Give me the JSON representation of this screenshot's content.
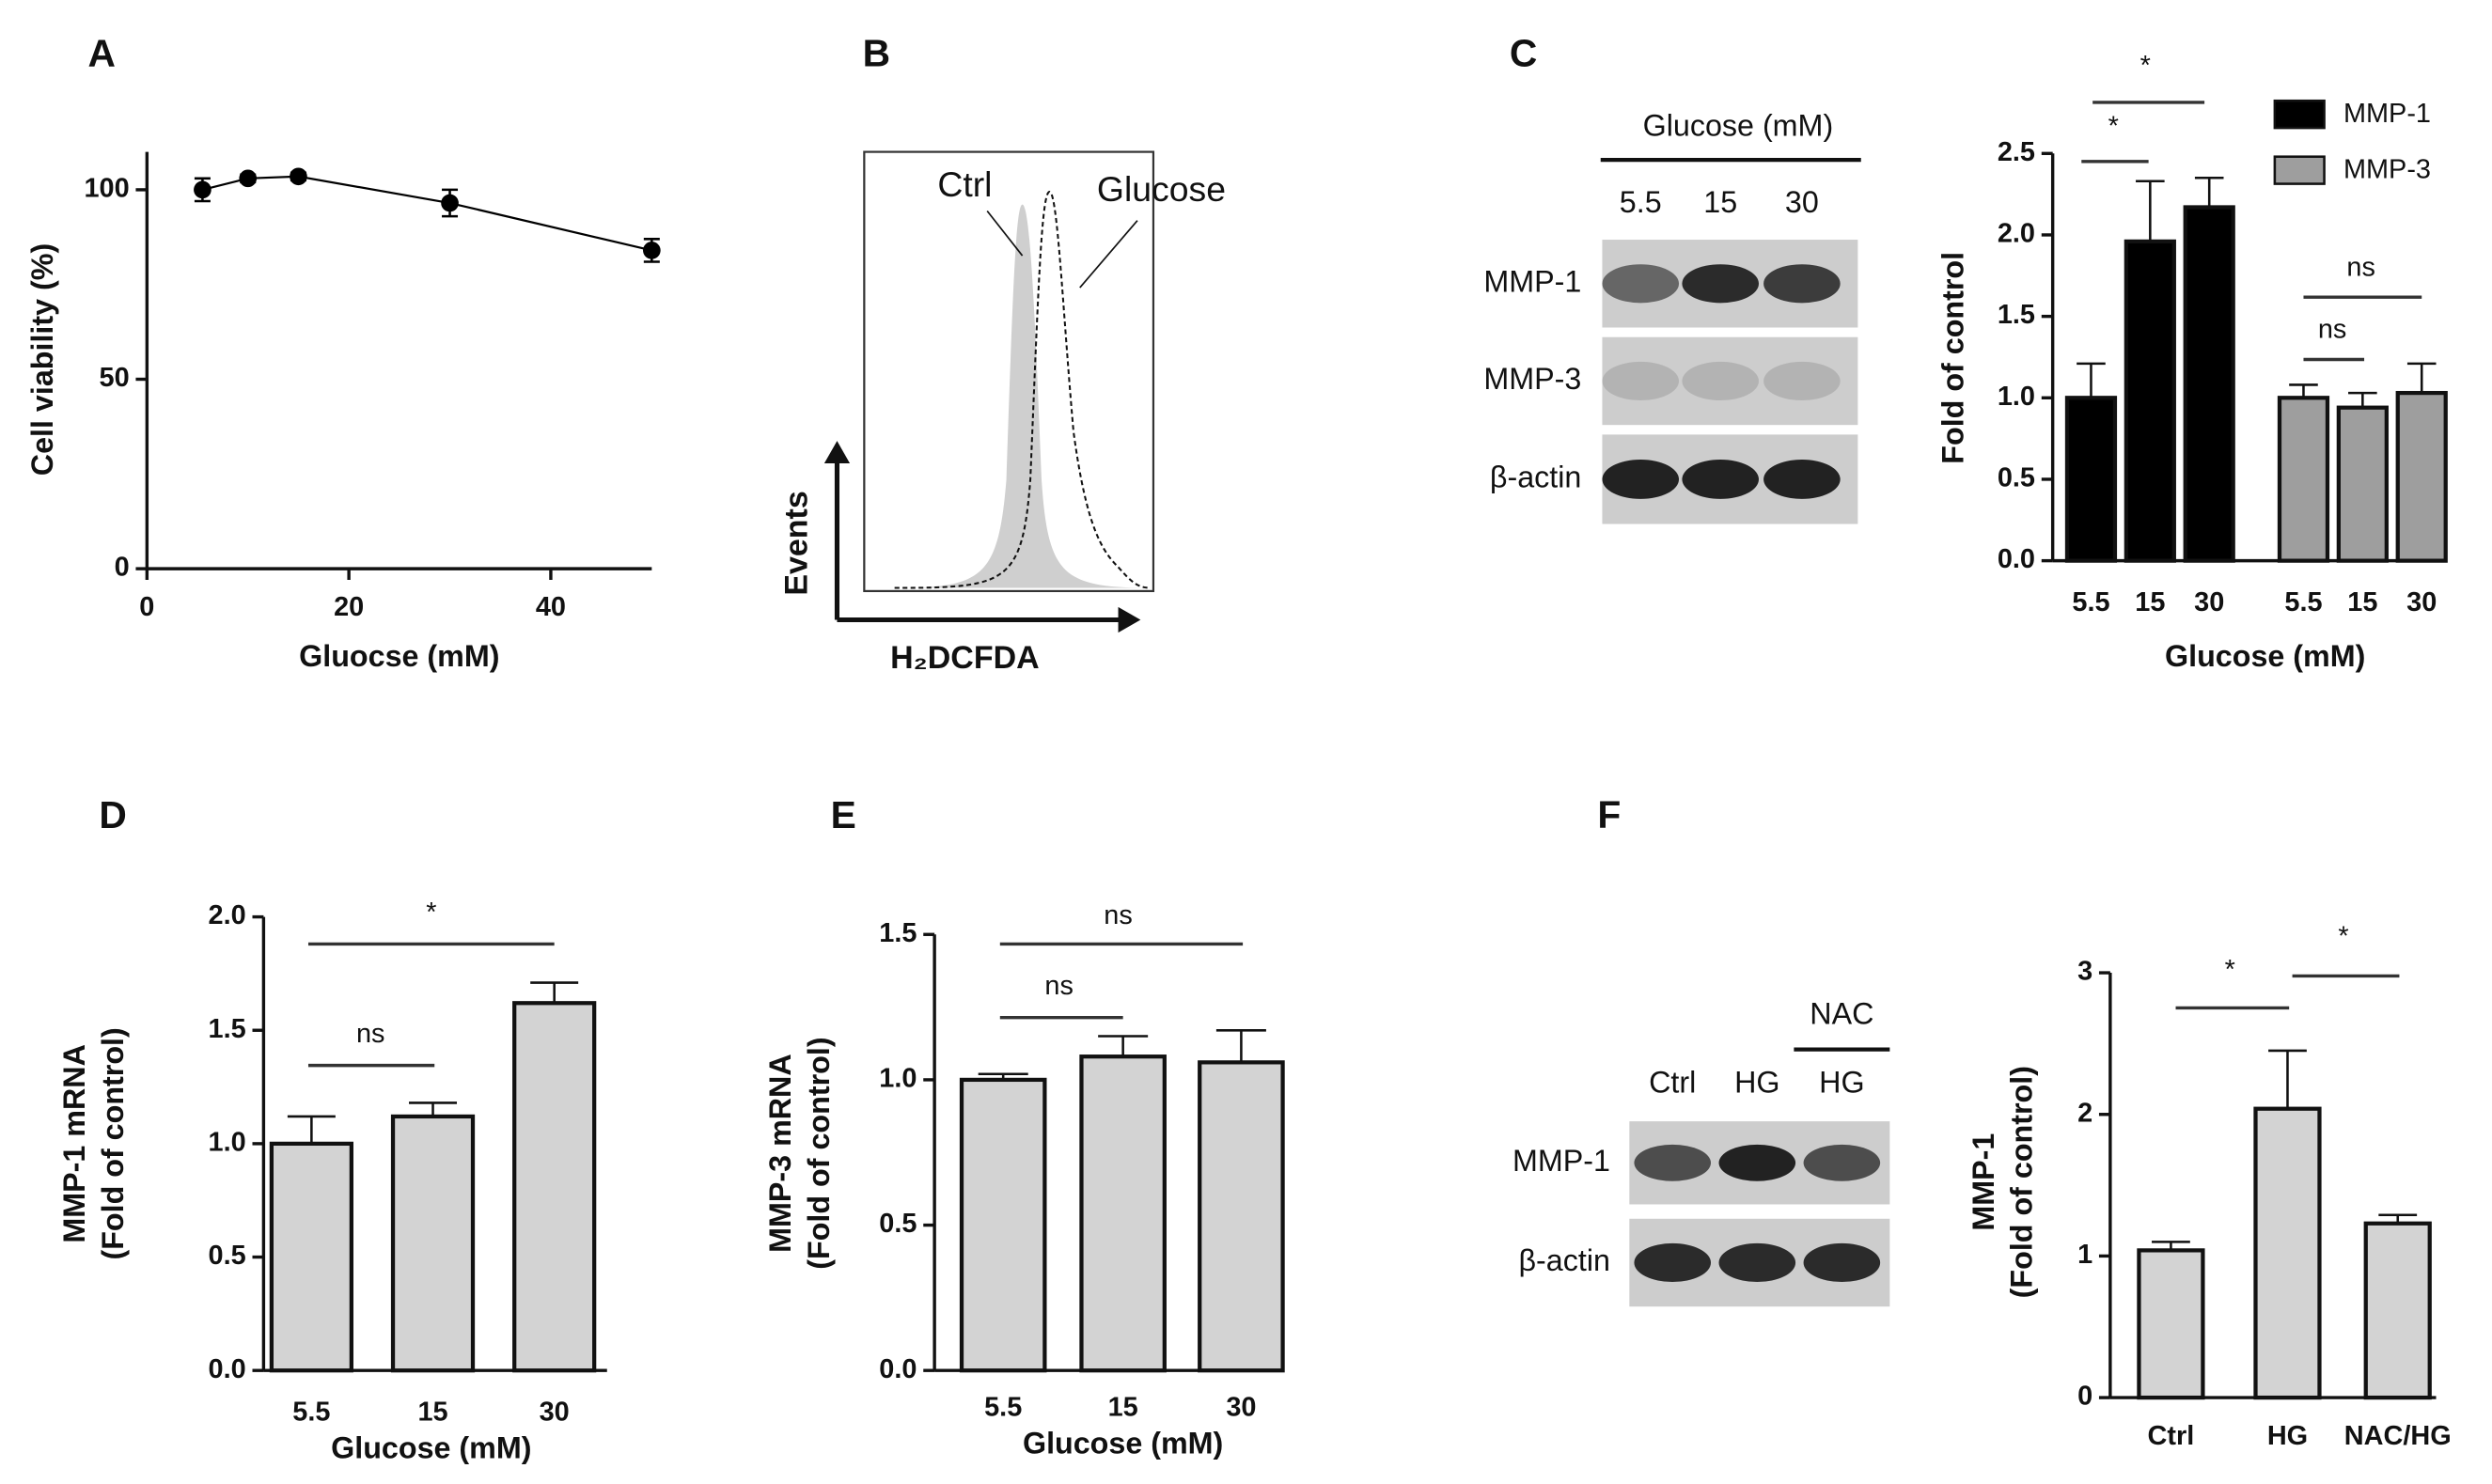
{
  "panel_labels": [
    "A",
    "B",
    "C",
    "D",
    "E",
    "F"
  ],
  "flow_panel": {
    "labels": [
      "Ctrl",
      "Glucose"
    ],
    "ylabel": "Events",
    "xlabel": "H₂DCFDA"
  },
  "blots": [
    {
      "header": "Glucose (mM)",
      "lanes": [
        "5.5",
        "15",
        "30"
      ],
      "rows": [
        "MMP-1",
        "MMP-3",
        "β-actin"
      ]
    },
    {
      "header": "NAC",
      "lanes": [
        "Ctrl",
        "HG",
        "HG"
      ],
      "rows": [
        "MMP-1",
        "β-actin"
      ]
    }
  ],
  "chart_data": [
    {
      "type": "scatter",
      "x": [
        5.5,
        10,
        15,
        30,
        50
      ],
      "values": [
        100,
        103,
        103.5,
        96.5,
        84
      ],
      "errors": [
        3,
        1,
        1,
        3.5,
        3
      ],
      "xlim": [
        0,
        50
      ],
      "ylim": [
        0,
        110
      ],
      "xticks": [
        0,
        20,
        40
      ],
      "yticks": [
        0,
        50,
        100
      ],
      "xlabel": "Gluocse (mM)",
      "ylabel": [
        "Cell viability (%)"
      ],
      "color": "#000000"
    },
    {
      "type": "bar",
      "categories": [
        "5.5",
        "15",
        "30"
      ],
      "series": [
        {
          "name": "MMP-1",
          "color": "#000000",
          "values": [
            1.0,
            1.96,
            2.17
          ],
          "errors": [
            0.21,
            0.37,
            0.18
          ]
        },
        {
          "name": "MMP-3",
          "color": "#9e9e9e",
          "values": [
            1.0,
            0.94,
            1.03
          ],
          "errors": [
            0.08,
            0.09,
            0.18
          ]
        }
      ],
      "ylim": [
        0,
        2.5
      ],
      "yticks": [
        {
          "value": 0,
          "label": "0.0"
        },
        0.5,
        {
          "value": 1,
          "label": "1.0"
        },
        1.5,
        {
          "value": 2,
          "label": "2.0"
        },
        2.5
      ],
      "xlabel": "Glucose (mM)",
      "ylabel": [
        "Fold of control"
      ],
      "annotations": [
        "*",
        "*",
        "ns",
        "ns"
      ],
      "legend": "upper right"
    },
    {
      "type": "bar",
      "categories": [
        "5.5",
        "15",
        "30"
      ],
      "values": [
        1.0,
        1.12,
        1.62
      ],
      "errors": [
        0.12,
        0.06,
        0.09
      ],
      "color": "#d3d3d3",
      "ylim": [
        0,
        2
      ],
      "yticks": [
        {
          "value": 0,
          "label": "0.0"
        },
        0.5,
        {
          "value": 1,
          "label": "1.0"
        },
        1.5,
        {
          "value": 2,
          "label": "2.0"
        }
      ],
      "xlabel": "Glucose (mM)",
      "ylabel": [
        "MMP-1 mRNA",
        "(Fold of control)"
      ],
      "annotations": [
        "ns",
        "*"
      ]
    },
    {
      "type": "bar",
      "categories": [
        "5.5",
        "15",
        "30"
      ],
      "values": [
        1.0,
        1.08,
        1.06
      ],
      "errors": [
        0.02,
        0.07,
        0.11
      ],
      "color": "#d3d3d3",
      "ylim": [
        0,
        1.5
      ],
      "yticks": [
        {
          "value": 0,
          "label": "0.0"
        },
        0.5,
        {
          "value": 1,
          "label": "1.0"
        },
        1.5
      ],
      "xlabel": "Glucose (mM)",
      "ylabel": [
        "MMP-3 mRNA",
        "(Fold of control)"
      ],
      "annotations": [
        "ns",
        "ns"
      ]
    },
    {
      "type": "bar",
      "categories": [
        "Ctrl",
        "HG",
        "NAC/HG"
      ],
      "values": [
        1.04,
        2.04,
        1.23
      ],
      "errors": [
        0.06,
        0.41,
        0.06
      ],
      "color": "#d3d3d3",
      "ylim": [
        0,
        3
      ],
      "yticks": [
        0,
        1,
        2,
        3
      ],
      "ylabel": [
        "MMP-1",
        "(Fold of control)"
      ],
      "annotations": [
        "*",
        "*"
      ]
    }
  ]
}
